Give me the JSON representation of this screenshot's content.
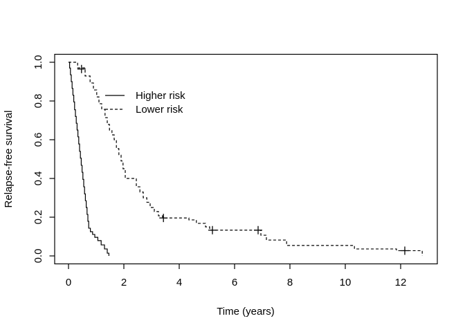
{
  "figure": {
    "background_color": "#ffffff",
    "line_color": "#000000"
  },
  "chart_data": {
    "type": "line",
    "subtype": "kaplan-meier-step-survival",
    "title": "",
    "xlabel": "Time (years)",
    "ylabel": "Relapse-free survival",
    "xlim": [
      -0.5,
      13.3
    ],
    "ylim": [
      -0.04,
      1.04
    ],
    "x_ticks": [
      0,
      2,
      4,
      6,
      8,
      10,
      12
    ],
    "y_ticks": [
      0.0,
      0.2,
      0.4,
      0.6,
      0.8,
      1.0
    ],
    "grid": false,
    "box": true,
    "legend": {
      "position": "inside-upper-left",
      "entries": [
        {
          "label": "Higher risk",
          "line_style": "solid"
        },
        {
          "label": "Lower risk",
          "line_style": "dashed"
        }
      ]
    },
    "series": [
      {
        "name": "Higher risk",
        "line_style": "solid",
        "color": "#000000",
        "points": [
          [
            0,
            1.0
          ],
          [
            0.04,
            0.97
          ],
          [
            0.07,
            0.935
          ],
          [
            0.1,
            0.9
          ],
          [
            0.13,
            0.865
          ],
          [
            0.16,
            0.83
          ],
          [
            0.19,
            0.795
          ],
          [
            0.22,
            0.755
          ],
          [
            0.25,
            0.72
          ],
          [
            0.28,
            0.685
          ],
          [
            0.31,
            0.65
          ],
          [
            0.34,
            0.615
          ],
          [
            0.37,
            0.578
          ],
          [
            0.4,
            0.54
          ],
          [
            0.43,
            0.505
          ],
          [
            0.46,
            0.468
          ],
          [
            0.49,
            0.432
          ],
          [
            0.52,
            0.395
          ],
          [
            0.55,
            0.357
          ],
          [
            0.58,
            0.32
          ],
          [
            0.61,
            0.285
          ],
          [
            0.64,
            0.25
          ],
          [
            0.67,
            0.214
          ],
          [
            0.7,
            0.179
          ],
          [
            0.73,
            0.143
          ],
          [
            0.79,
            0.125
          ],
          [
            0.87,
            0.111
          ],
          [
            0.95,
            0.096
          ],
          [
            1.06,
            0.079
          ],
          [
            1.18,
            0.057
          ],
          [
            1.3,
            0.036
          ],
          [
            1.4,
            0.014
          ],
          [
            1.46,
            0.0
          ]
        ],
        "censors": []
      },
      {
        "name": "Lower risk",
        "line_style": "dashed",
        "color": "#000000",
        "points": [
          [
            0,
            1.0
          ],
          [
            0.33,
            0.971
          ],
          [
            0.6,
            0.929
          ],
          [
            0.78,
            0.893
          ],
          [
            0.9,
            0.857
          ],
          [
            1.02,
            0.821
          ],
          [
            1.1,
            0.786
          ],
          [
            1.2,
            0.757
          ],
          [
            1.32,
            0.714
          ],
          [
            1.4,
            0.679
          ],
          [
            1.48,
            0.65
          ],
          [
            1.57,
            0.625
          ],
          [
            1.65,
            0.6
          ],
          [
            1.73,
            0.554
          ],
          [
            1.82,
            0.52
          ],
          [
            1.9,
            0.49
          ],
          [
            1.97,
            0.45
          ],
          [
            2.05,
            0.4
          ],
          [
            2.45,
            0.357
          ],
          [
            2.58,
            0.33
          ],
          [
            2.7,
            0.3
          ],
          [
            2.83,
            0.277
          ],
          [
            2.95,
            0.25
          ],
          [
            3.1,
            0.229
          ],
          [
            3.25,
            0.207
          ],
          [
            3.4,
            0.196
          ],
          [
            4.35,
            0.186
          ],
          [
            4.62,
            0.168
          ],
          [
            4.95,
            0.15
          ],
          [
            5.1,
            0.133
          ],
          [
            6.95,
            0.107
          ],
          [
            7.15,
            0.082
          ],
          [
            7.88,
            0.054
          ],
          [
            10.33,
            0.036
          ],
          [
            11.85,
            0.027
          ],
          [
            12.78,
            0.0
          ]
        ],
        "censors": [
          [
            0.47,
            0.965
          ],
          [
            3.43,
            0.196
          ],
          [
            5.2,
            0.133
          ],
          [
            6.85,
            0.133
          ],
          [
            12.15,
            0.027
          ]
        ]
      }
    ]
  }
}
